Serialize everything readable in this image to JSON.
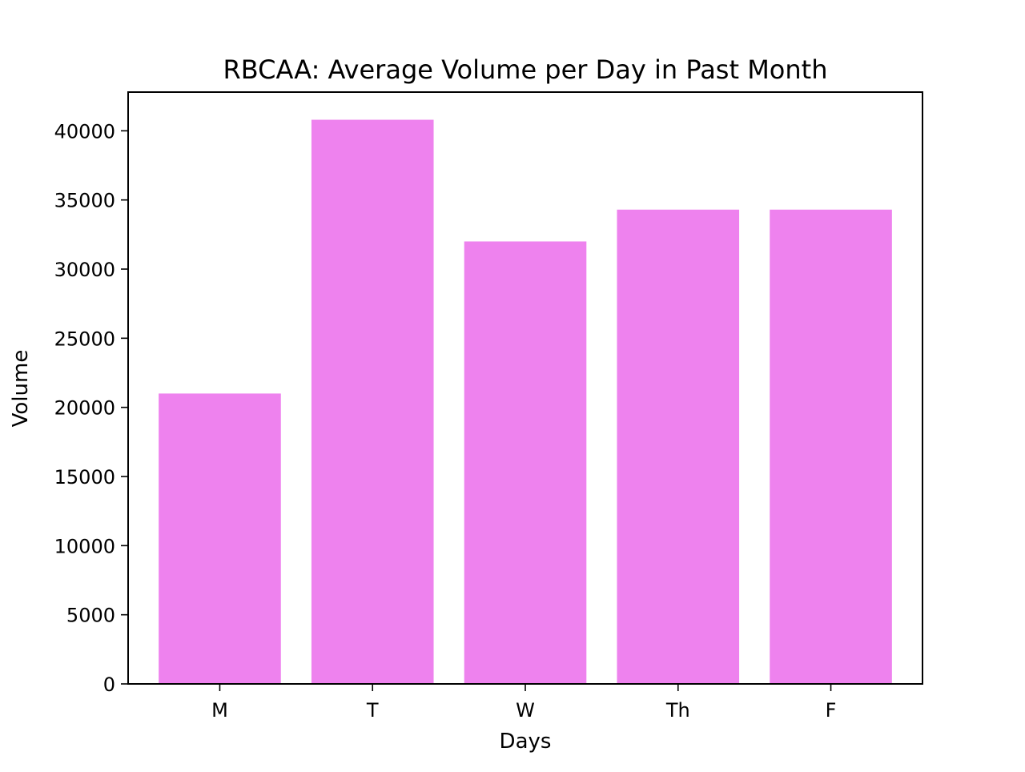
{
  "chart_data": {
    "type": "bar",
    "title": "RBCAA: Average Volume per Day in Past Month",
    "xlabel": "Days",
    "ylabel": "Volume",
    "categories": [
      "M",
      "T",
      "W",
      "Th",
      "F"
    ],
    "values": [
      21000,
      40800,
      32000,
      34300,
      34300
    ],
    "ylim": [
      0,
      42800
    ],
    "yticks": [
      0,
      5000,
      10000,
      15000,
      20000,
      25000,
      30000,
      35000,
      40000
    ],
    "ytick_labels": [
      "0",
      "5000",
      "10000",
      "15000",
      "20000",
      "25000",
      "30000",
      "35000",
      "40000"
    ],
    "bar_color": "#ee82ee",
    "grid": false,
    "legend": "none"
  }
}
